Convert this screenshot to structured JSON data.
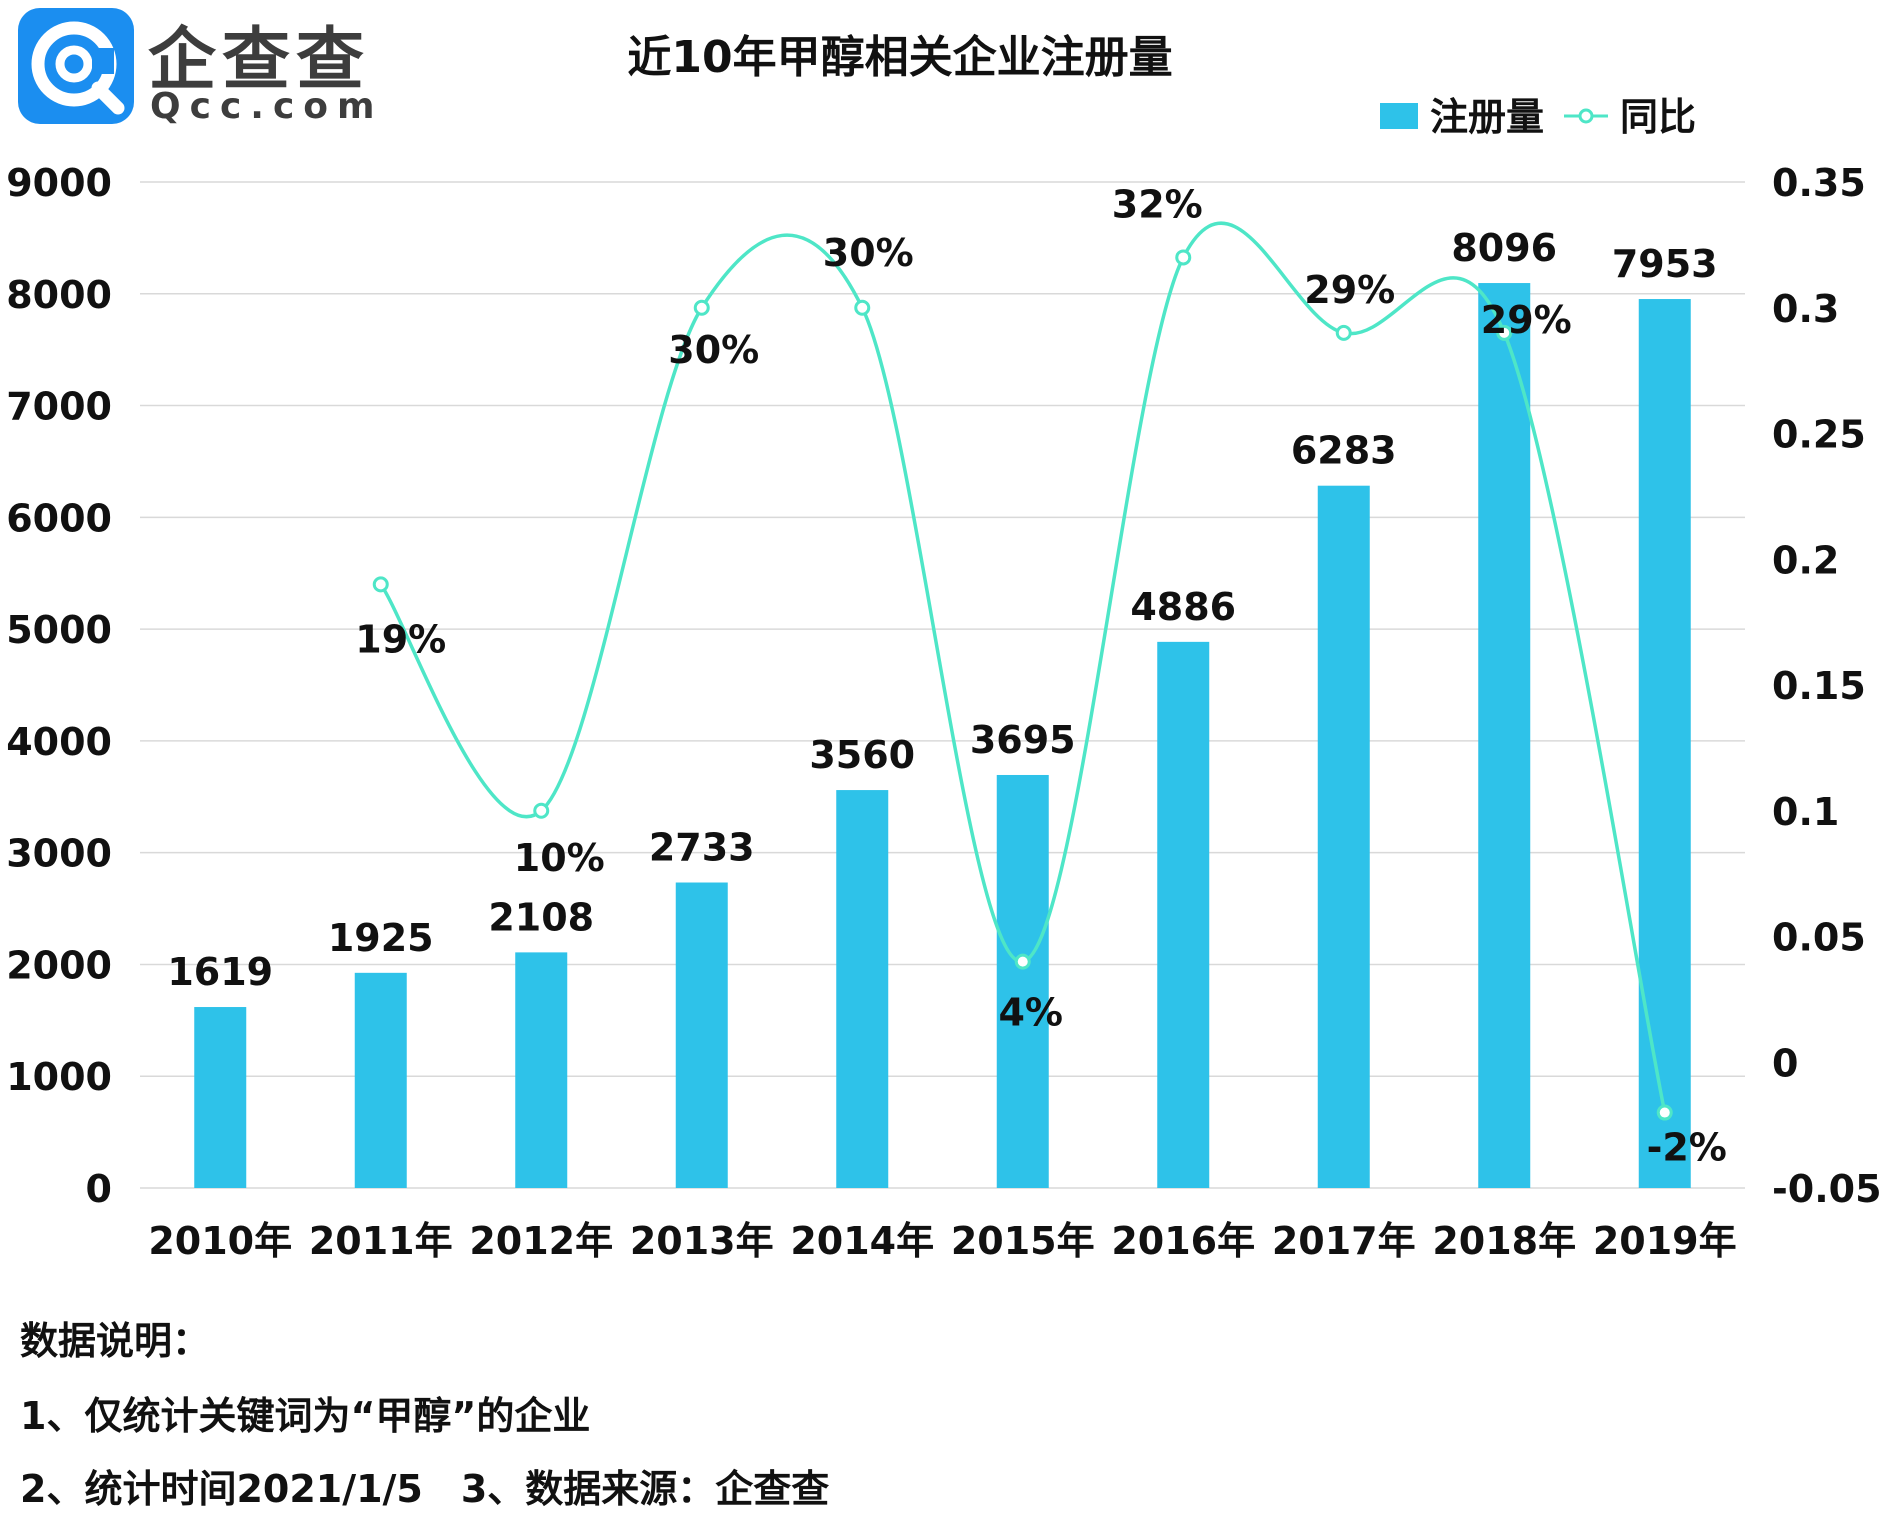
{
  "logo": {
    "brand_cn": "企查查",
    "brand_en": "Qcc.com"
  },
  "chart_data": {
    "type": "bar",
    "title": "近10年甲醇相关企业注册量",
    "categories": [
      "2010年",
      "2011年",
      "2012年",
      "2013年",
      "2014年",
      "2015年",
      "2016年",
      "2017年",
      "2018年",
      "2019年"
    ],
    "series": [
      {
        "name": "注册量",
        "kind": "bar",
        "axis": "left",
        "values": [
          1619,
          1925,
          2108,
          2733,
          3560,
          3695,
          4886,
          6283,
          8096,
          7953
        ],
        "labels": [
          "1619",
          "1925",
          "2108",
          "2733",
          "3560",
          "3695",
          "4886",
          "6283",
          "8096",
          "7953"
        ]
      },
      {
        "name": "同比",
        "kind": "line",
        "axis": "right",
        "values": [
          null,
          0.19,
          0.1,
          0.3,
          0.3,
          0.04,
          0.32,
          0.29,
          0.29,
          -0.02
        ],
        "labels": [
          null,
          "19%",
          "10%",
          "30%",
          "30%",
          "4%",
          "32%",
          "29%",
          "29%",
          "-2%"
        ]
      }
    ],
    "y_left": {
      "min": 0,
      "max": 9000,
      "ticks": [
        "0",
        "1000",
        "2000",
        "3000",
        "4000",
        "5000",
        "6000",
        "7000",
        "8000",
        "9000"
      ]
    },
    "y_right": {
      "min": -0.05,
      "max": 0.35,
      "ticks": [
        "-0.05",
        "0",
        "0.05",
        "0.1",
        "0.15",
        "0.2",
        "0.25",
        "0.3",
        "0.35"
      ]
    },
    "legend": {
      "position": "top-right",
      "items": [
        "注册量",
        "同比"
      ]
    },
    "colors": {
      "bar": "#2ec2e9",
      "line": "#4ee6c7",
      "grid": "#d9d9d9"
    },
    "grid": true
  },
  "notes": {
    "heading": "数据说明：",
    "line1": "1、仅统计关键词为“甲醇”的企业",
    "line2": "2、统计时间2021/1/5　3、数据来源：企查查"
  }
}
